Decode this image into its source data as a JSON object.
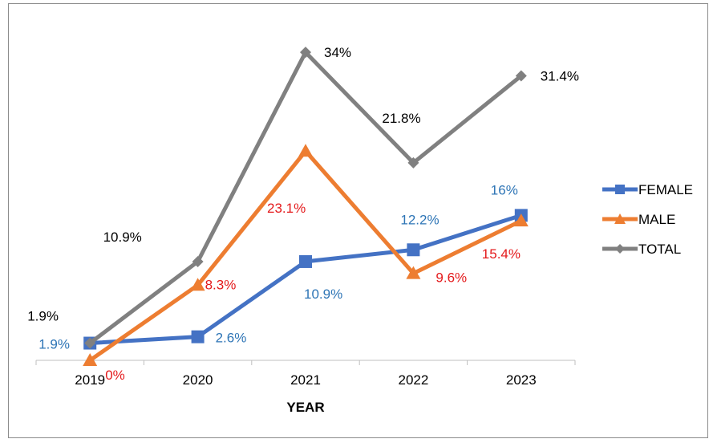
{
  "chart_data": {
    "type": "line",
    "title": "",
    "xlabel": "YEAR",
    "ylabel": "",
    "categories": [
      "2019",
      "2020",
      "2021",
      "2022",
      "2023"
    ],
    "ylim": [
      0,
      38
    ],
    "grid": false,
    "legend_position": "right",
    "series": [
      {
        "name": "FEMALE",
        "values": [
          1.9,
          2.6,
          10.9,
          12.2,
          16
        ],
        "labels": [
          "1.9%",
          "2.6%",
          "10.9%",
          "12.2%",
          "16%"
        ],
        "color": "#4472C4",
        "label_color": "#2E75B6",
        "marker": "square"
      },
      {
        "name": "MALE",
        "values": [
          0,
          8.3,
          23.1,
          9.6,
          15.4
        ],
        "labels": [
          "0%",
          "8.3%",
          "23.1%",
          "9.6%",
          "15.4%"
        ],
        "color": "#ED7D31",
        "label_color": "#E41A1C",
        "marker": "triangle"
      },
      {
        "name": "TOTAL",
        "values": [
          1.9,
          10.9,
          34,
          21.8,
          31.4
        ],
        "labels": [
          "1.9%",
          "10.9%",
          "34%",
          "21.8%",
          "31.4%"
        ],
        "color": "#808080",
        "label_color": "#000000",
        "marker": "diamond"
      }
    ]
  }
}
